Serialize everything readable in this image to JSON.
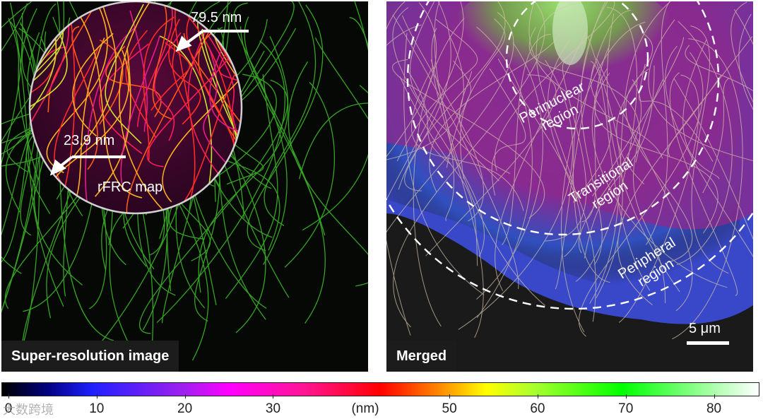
{
  "left_panel": {
    "caption": "Super-resolution image",
    "inset_label": "rFRC map",
    "arrow_top_label": "79.5 nm",
    "arrow_bottom_label": "23.9 nm"
  },
  "right_panel": {
    "caption": "Merged",
    "regions": {
      "perinuclear": [
        "Perinuclear",
        "region"
      ],
      "transitional": [
        "Transitional",
        "region"
      ],
      "peripheral": [
        "Peripheral",
        "region"
      ]
    },
    "scale_bar_label": "5 μm"
  },
  "colorbar": {
    "unit": "(nm)",
    "ticks": [
      "0",
      "10",
      "20",
      "30",
      "50",
      "60",
      "70",
      "80"
    ],
    "range": [
      0,
      83
    ]
  },
  "watermark": "大数跨境"
}
